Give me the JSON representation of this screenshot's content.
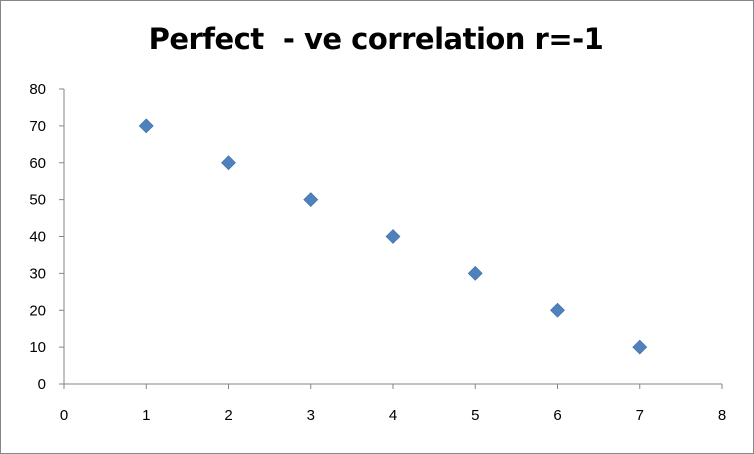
{
  "chart_data": {
    "type": "scatter",
    "title": "Perfect  - ve correlation r=-1",
    "xlabel": "",
    "ylabel": "",
    "xlim": [
      0,
      8
    ],
    "ylim": [
      0,
      80
    ],
    "x_ticks": [
      "0",
      "1",
      "2",
      "3",
      "4",
      "5",
      "6",
      "7",
      "8"
    ],
    "y_ticks": [
      "0",
      "10",
      "20",
      "30",
      "40",
      "50",
      "60",
      "70",
      "80"
    ],
    "grid": false,
    "legend": "none",
    "marker": "diamond",
    "marker_color": "#4F81BD",
    "points": [
      {
        "x": 1,
        "y": 70
      },
      {
        "x": 2,
        "y": 60
      },
      {
        "x": 3,
        "y": 50
      },
      {
        "x": 4,
        "y": 40
      },
      {
        "x": 5,
        "y": 30
      },
      {
        "x": 6,
        "y": 20
      },
      {
        "x": 7,
        "y": 10
      }
    ]
  }
}
